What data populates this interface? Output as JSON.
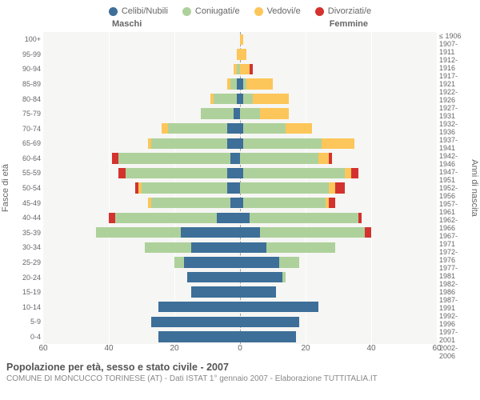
{
  "legend": [
    {
      "label": "Celibi/Nubili",
      "color": "#3d6f99"
    },
    {
      "label": "Coniugati/e",
      "color": "#aed19b"
    },
    {
      "label": "Vedovi/e",
      "color": "#fdc65a"
    },
    {
      "label": "Divorziati/e",
      "color": "#d4322e"
    }
  ],
  "header_left": "Maschi",
  "header_right": "Femmine",
  "yaxis_left_label": "Fasce di età",
  "yaxis_right_label": "Anni di nascita",
  "age_labels": [
    "100+",
    "95-99",
    "90-94",
    "85-89",
    "80-84",
    "75-79",
    "70-74",
    "65-69",
    "60-64",
    "55-59",
    "50-54",
    "45-49",
    "40-44",
    "35-39",
    "30-34",
    "25-29",
    "20-24",
    "15-19",
    "10-14",
    "5-9",
    "0-4"
  ],
  "year_labels": [
    "≤ 1906",
    "1907-1911",
    "1912-1916",
    "1917-1921",
    "1922-1926",
    "1927-1931",
    "1932-1936",
    "1937-1941",
    "1942-1946",
    "1947-1951",
    "1952-1956",
    "1957-1961",
    "1962-1966",
    "1967-1971",
    "1972-1976",
    "1977-1981",
    "1982-1986",
    "1987-1991",
    "1992-1996",
    "1997-2001",
    "2002-2006"
  ],
  "xmax": 60,
  "xticks": [
    60,
    40,
    20,
    0,
    20,
    40,
    60
  ],
  "colors": {
    "single": "#3d6f99",
    "married": "#aed19b",
    "widowed": "#fdc65a",
    "divorced": "#d4322e",
    "grid": "#ffffff",
    "plot_bg": "#f6f6f4",
    "centerline": "#999999"
  },
  "rows": [
    {
      "m": {
        "s": 0,
        "c": 0,
        "w": 0,
        "d": 0
      },
      "f": {
        "s": 0,
        "c": 0,
        "w": 1,
        "d": 0
      }
    },
    {
      "m": {
        "s": 0,
        "c": 0,
        "w": 1,
        "d": 0
      },
      "f": {
        "s": 0,
        "c": 0,
        "w": 2,
        "d": 0
      }
    },
    {
      "m": {
        "s": 0,
        "c": 1,
        "w": 1,
        "d": 0
      },
      "f": {
        "s": 0,
        "c": 0,
        "w": 3,
        "d": 1
      }
    },
    {
      "m": {
        "s": 1,
        "c": 2,
        "w": 1,
        "d": 0
      },
      "f": {
        "s": 1,
        "c": 1,
        "w": 8,
        "d": 0
      }
    },
    {
      "m": {
        "s": 1,
        "c": 7,
        "w": 1,
        "d": 0
      },
      "f": {
        "s": 1,
        "c": 3,
        "w": 11,
        "d": 0
      }
    },
    {
      "m": {
        "s": 2,
        "c": 10,
        "w": 0,
        "d": 0
      },
      "f": {
        "s": 0,
        "c": 6,
        "w": 9,
        "d": 0
      }
    },
    {
      "m": {
        "s": 4,
        "c": 18,
        "w": 2,
        "d": 0
      },
      "f": {
        "s": 1,
        "c": 13,
        "w": 8,
        "d": 0
      }
    },
    {
      "m": {
        "s": 4,
        "c": 23,
        "w": 1,
        "d": 0
      },
      "f": {
        "s": 1,
        "c": 24,
        "w": 10,
        "d": 0
      }
    },
    {
      "m": {
        "s": 3,
        "c": 34,
        "w": 0,
        "d": 2
      },
      "f": {
        "s": 0,
        "c": 24,
        "w": 3,
        "d": 1
      }
    },
    {
      "m": {
        "s": 4,
        "c": 31,
        "w": 0,
        "d": 2
      },
      "f": {
        "s": 1,
        "c": 31,
        "w": 2,
        "d": 2
      }
    },
    {
      "m": {
        "s": 4,
        "c": 26,
        "w": 1,
        "d": 1
      },
      "f": {
        "s": 0,
        "c": 27,
        "w": 2,
        "d": 3
      }
    },
    {
      "m": {
        "s": 3,
        "c": 24,
        "w": 1,
        "d": 0
      },
      "f": {
        "s": 1,
        "c": 25,
        "w": 1,
        "d": 2
      }
    },
    {
      "m": {
        "s": 7,
        "c": 31,
        "w": 0,
        "d": 2
      },
      "f": {
        "s": 3,
        "c": 33,
        "w": 0,
        "d": 1
      }
    },
    {
      "m": {
        "s": 18,
        "c": 26,
        "w": 0,
        "d": 0
      },
      "f": {
        "s": 6,
        "c": 32,
        "w": 0,
        "d": 2
      }
    },
    {
      "m": {
        "s": 15,
        "c": 14,
        "w": 0,
        "d": 0
      },
      "f": {
        "s": 8,
        "c": 21,
        "w": 0,
        "d": 0
      }
    },
    {
      "m": {
        "s": 17,
        "c": 3,
        "w": 0,
        "d": 0
      },
      "f": {
        "s": 12,
        "c": 6,
        "w": 0,
        "d": 0
      }
    },
    {
      "m": {
        "s": 16,
        "c": 0,
        "w": 0,
        "d": 0
      },
      "f": {
        "s": 13,
        "c": 1,
        "w": 0,
        "d": 0
      }
    },
    {
      "m": {
        "s": 15,
        "c": 0,
        "w": 0,
        "d": 0
      },
      "f": {
        "s": 11,
        "c": 0,
        "w": 0,
        "d": 0
      }
    },
    {
      "m": {
        "s": 25,
        "c": 0,
        "w": 0,
        "d": 0
      },
      "f": {
        "s": 24,
        "c": 0,
        "w": 0,
        "d": 0
      }
    },
    {
      "m": {
        "s": 27,
        "c": 0,
        "w": 0,
        "d": 0
      },
      "f": {
        "s": 18,
        "c": 0,
        "w": 0,
        "d": 0
      }
    },
    {
      "m": {
        "s": 25,
        "c": 0,
        "w": 0,
        "d": 0
      },
      "f": {
        "s": 17,
        "c": 0,
        "w": 0,
        "d": 0
      }
    }
  ],
  "caption_title": "Popolazione per età, sesso e stato civile - 2007",
  "caption_sub": "COMUNE DI MONCUCCO TORINESE (AT) - Dati ISTAT 1° gennaio 2007 - Elaborazione TUTTITALIA.IT"
}
